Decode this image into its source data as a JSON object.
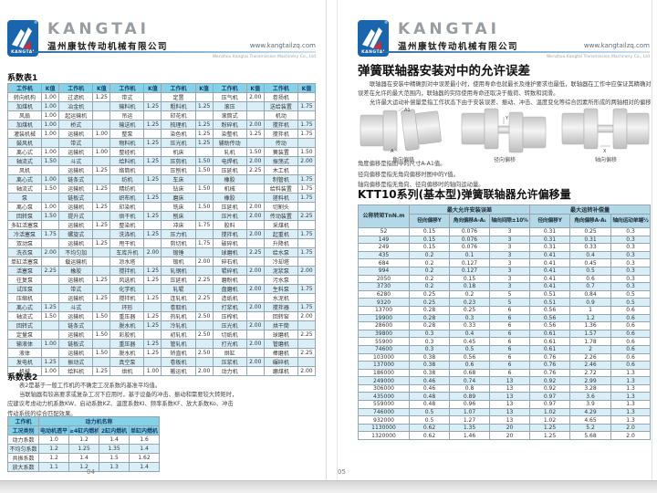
{
  "header": {
    "brand": "KANGTAI",
    "logo_text": "KANGTAI",
    "registered_mark": "®",
    "company_cn": "温州康钛传动机械有限公司",
    "website": "www.kangtailzq.com",
    "company_en": "Wenzhou Kangtai Transmission Machinery Co., Ltd"
  },
  "colors": {
    "logo_blue": "#1965ae",
    "logo_red": "#d03030",
    "table_header_cyan": "#85d2e8",
    "row_alt_blue": "#d9eef7",
    "ktt_header_blue": "#b3d8e8",
    "divider_blue": "#2e6da8"
  },
  "left_page": {
    "page_number": "04",
    "table1": {
      "title": "系数表1",
      "header": {
        "machine": "工作机",
        "k": "K值"
      },
      "rows": [
        [
          "转向机构",
          "1.00",
          "过滤机",
          "1.25",
          "带式",
          "",
          "定置",
          "",
          "压气机",
          "2.00",
          "卷扬机",
          ""
        ],
        [
          "加煤机",
          "1.00",
          "冶金机",
          "",
          "输料机",
          "1.25",
          "粗料机",
          "1.25",
          "滚压",
          "",
          "送给装置",
          "1.75"
        ],
        [
          "风扇",
          "1.00",
          "起运输机",
          "",
          "吊运",
          "",
          "印花机",
          "",
          "滚筒式",
          "",
          "机动",
          ""
        ],
        [
          "加煤机",
          "1.00",
          "桥式",
          "",
          "输送机",
          "1.25",
          "梳理机",
          "1.25",
          "粉碎机",
          "2.00",
          "搅拌机",
          "1.75"
        ],
        [
          "灌装机械",
          "1.00",
          "运输机",
          "1.00",
          "整泵",
          "",
          "染色机",
          "1.25",
          "染整机",
          "1.25",
          "搅拌机",
          "1.75"
        ],
        [
          "鼓风机",
          "",
          "带式",
          "",
          "物料机",
          "1.25",
          "压光机",
          "1.25",
          "辅助传动",
          "",
          "传动",
          ""
        ],
        [
          "离心式",
          "1.00",
          "运输机",
          "1.00",
          "整经机",
          "",
          "机床",
          "",
          "轧机",
          "1.50",
          "簧装置",
          "1.50"
        ],
        [
          "轴流式",
          "1.50",
          "斗式",
          "",
          "给料机",
          "1.25",
          "压剪机",
          "1.50",
          "电焊机",
          "2.00",
          "振荡式",
          "2.00"
        ],
        [
          "风机",
          "",
          "运输机",
          "1.25",
          "络筒机",
          "",
          "压刨机",
          "1.50",
          "压延机",
          "2.25",
          "木工机",
          ""
        ],
        [
          "离心式",
          "1.00",
          "链条式",
          "",
          "纺机",
          "1.25",
          "车床",
          "",
          "橡胶",
          "",
          "制管机",
          "1.75"
        ],
        [
          "轴流式",
          "1.50",
          "运输机",
          "1.25",
          "精纺机",
          "",
          "钻床",
          "1.50",
          "机械",
          "",
          "给料装置",
          "1.75"
        ],
        [
          "泵",
          "",
          "链板式",
          "",
          "织布机",
          "1.25",
          "磨床",
          "",
          "橡胶",
          "",
          "搓料机",
          "1.75"
        ],
        [
          "离心泵",
          "1.00",
          "运输机",
          "1.25",
          "印染机",
          "",
          "铣床",
          "1.50",
          "压延机",
          "2.00",
          "切割头",
          ""
        ],
        [
          "回转泵",
          "1.50",
          "提升式",
          "",
          "烘干机",
          "1.25",
          "刨床",
          "",
          "压片机",
          "2.00",
          "传动装置",
          "2.25"
        ],
        [
          "多缸活塞泵",
          "",
          "运输机",
          "1.25",
          "整染机",
          "",
          "冲床",
          "1.75",
          "胶料",
          "",
          "采煤机",
          ""
        ],
        [
          "冷活塞泵",
          "1.75",
          "螺旋式",
          "",
          "洗涤机",
          "1.25",
          "压力机",
          "",
          "搅拌机",
          "2.00",
          "起重机",
          "1.75"
        ],
        [
          "双动泵",
          "",
          "运输机",
          "1.25",
          "甩干机",
          "",
          "剪切机",
          "1.75",
          "破碎机",
          "",
          "升降机",
          ""
        ],
        [
          "洗衣泵",
          "2.00",
          "不均匀加",
          "",
          "车库升机",
          "2.00",
          "锻锤",
          "",
          "球磨机",
          "2.25",
          "给水泵",
          "1.75"
        ],
        [
          "单缸活塞泵",
          "",
          "载运输机",
          "",
          "凉水塔",
          "",
          "锻机",
          "2.00",
          "碎石机",
          "",
          "冷却塔",
          ""
        ],
        [
          "活塞泵",
          "2.25",
          "橡胶",
          "",
          "搅拌机",
          "1.25",
          "轧钢机",
          "",
          "辊碎机",
          "2.00",
          "泥浆泵",
          "2.00"
        ],
        [
          "往复泵",
          "",
          "运输机",
          "1.25",
          "风选机",
          "1.25",
          "压延机",
          "2.25",
          "磨粉机",
          "",
          "污水泵",
          ""
        ],
        [
          "试压泵",
          "",
          "带式",
          "",
          "化学机",
          "",
          "轧辊",
          "",
          "盘磨机",
          "2.00",
          "生料泵",
          "1.75"
        ],
        [
          "压缩机",
          "",
          "运输机",
          "1.25",
          "搅拌机",
          "1.25",
          "连轧机",
          "2.25",
          "造纸机",
          "",
          "水泥机",
          ""
        ],
        [
          "离心式",
          "1.25",
          "斗式",
          "",
          "环形",
          "",
          "卷取机",
          "",
          "打浆机",
          "2.00",
          "搅拌器",
          "1.75"
        ],
        [
          "轴流式",
          "1.50",
          "运输机",
          "1.50",
          "重压器",
          "1.25",
          "热轧机",
          "2.50",
          "压榨机",
          "",
          "回转窑",
          "2.00"
        ],
        [
          "回转式",
          "",
          "链条式",
          "",
          "脱水机",
          "1.25",
          "冷轧机",
          "",
          "压光机",
          "2.00",
          "烘干筒",
          ""
        ],
        [
          "定量泵",
          "",
          "运输机",
          "1.50",
          "彩胶机",
          "",
          "初轧机",
          "2.50",
          "切纸机",
          "",
          "球磨机",
          "2.25"
        ],
        [
          "输液体",
          "1.00",
          "链板式",
          "",
          "重压器",
          "1.25",
          "管轧机",
          "",
          "打光机",
          "2.00",
          "管磨机",
          ""
        ],
        [
          "液体",
          "",
          "运输机",
          "1.50",
          "脱水机",
          "1.25",
          "矫直机",
          "2.50",
          "烘缸",
          "",
          "棒磨机",
          "2.25"
        ],
        [
          "发电机",
          "1.25",
          "振动式",
          "",
          "真空泵",
          "",
          "卷板机",
          "",
          "压浆机",
          "2.00",
          "碾碎机",
          ""
        ],
        [
          "机械",
          "1.00",
          "给料机",
          "1.25",
          "烘机",
          "1.00",
          "搬运机",
          "2.00",
          "动力机",
          "",
          "磨煤机",
          "2.00"
        ]
      ]
    },
    "section2": {
      "title": "系数表2",
      "paragraph": [
        "表2是基于一般工作机的不确定工况系数的基准平均值。",
        "当联轴器有较高要求或复杂工况下应用时，基于设备的冲击、振动和需要较大转矩时，",
        "应建议考虑动力机系数KW、启动系数KZ、温度系数KI、频率系数KF、放大系数Ko、冲击",
        "传动系统的综合匹配效果。"
      ],
      "table2": {
        "corner": "工作机",
        "group": "动力机名称",
        "row_header": "工况类别",
        "cols": [
          "电动机透平",
          "≥4缸内燃机",
          "2缸内燃机",
          "单缸内燃机"
        ],
        "rows": [
          [
            "动力系数",
            "1.0",
            "1.2",
            "1.4",
            "1.6"
          ],
          [
            "不均匀系数",
            "1.2",
            "1.25",
            "1.35",
            "1.4"
          ],
          [
            "共振系数",
            "1.2",
            "1.4",
            "1.5",
            "1.62"
          ],
          [
            "放大系数",
            "1.1",
            "1.2",
            "1.3",
            "1.4"
          ]
        ]
      }
    }
  },
  "right_page": {
    "page_number": "05",
    "title": "弹簧联轴器安装对中的允许误差",
    "paragraph": [
      "联轴器在安装中精确到对中误差最小时，使用寿命也就最长及维护要求也最低，联轴器在工作中应保证其精确对中",
      "误差在允许的最大范围内，联轴器的实际使用寿命还取决于载荷、转数和润滑。",
      "允许最大运动补偿量是指工作状态下由于安装误差、振动、冲击、温度变化等综合因素所形成的两轴相对的偏移量。"
    ],
    "diagrams": [
      {
        "caption": "角向偏移",
        "labels": [
          "A1",
          "A"
        ]
      },
      {
        "caption": "径向偏移",
        "labels": [
          "Y"
        ]
      },
      {
        "caption": "轴向偏移",
        "labels": [
          "X"
        ]
      }
    ],
    "notes": [
      "角度偏移是指图中的尺寸A-A1值。",
      "径向偏移是指无角向偏移时图中的Y值。",
      "轴向偏移是指无角向、径向偏移时的轴向运动量。"
    ],
    "table_title": "KTT10系列(基本型)弹簧联轴器允许偏移量",
    "ktt_table": {
      "col_torque": "公称转矩TnN.m",
      "group_install": "最大允许安装误差",
      "group_run": "最大运转补偿量",
      "sub_cols": [
        "径向偏移Y",
        "角向偏移A-A₁",
        "轴向间隙±10%",
        "径向偏移Y",
        "角向偏移A-A₁",
        "轴向运动单端½"
      ],
      "rows": [
        [
          "52",
          "0.15",
          "0.076",
          "3",
          "0.31",
          "0.25",
          "0.3"
        ],
        [
          "149",
          "0.15",
          "0.076",
          "3",
          "0.31",
          "0.31",
          "0.3"
        ],
        [
          "249",
          "0.15",
          "0.076",
          "3",
          "0.31",
          "0.33",
          "0.3"
        ],
        [
          "435",
          "0.2",
          "0.1",
          "3",
          "0.41",
          "0.4",
          "0.3"
        ],
        [
          "684",
          "0.2",
          "0.127",
          "3",
          "0.41",
          "0.45",
          "0.3"
        ],
        [
          "994",
          "0.2",
          "0.127",
          "3",
          "0.41",
          "0.5",
          "0.3"
        ],
        [
          "2050",
          "0.2",
          "0.15",
          "3",
          "0.41",
          "0.6",
          "0.3"
        ],
        [
          "3730",
          "0.2",
          "0.18",
          "3",
          "0.41",
          "0.7",
          "0.3"
        ],
        [
          "6280",
          "0.25",
          "0.2",
          "5",
          "0.51",
          "0.84",
          "0.5"
        ],
        [
          "9320",
          "0.25",
          "0.23",
          "5",
          "0.51",
          "0.9",
          "0.5"
        ],
        [
          "13700",
          "0.28",
          "0.25",
          "6",
          "0.56",
          "1",
          "0.6"
        ],
        [
          "19900",
          "0.28",
          "0.3",
          "6",
          "0.56",
          "1.2",
          "0.6"
        ],
        [
          "28600",
          "0.28",
          "0.33",
          "6",
          "0.56",
          "1.36",
          "0.6"
        ],
        [
          "39800",
          "0.3",
          "0.4",
          "6",
          "0.61",
          "1.57",
          "0.6"
        ],
        [
          "55900",
          "0.3",
          "0.45",
          "6",
          "0.61",
          "1.78",
          "0.6"
        ],
        [
          "74600",
          "0.3",
          "0.5",
          "6",
          "0.61",
          "2",
          "0.6"
        ],
        [
          "103000",
          "0.38",
          "0.56",
          "6",
          "0.76",
          "2.26",
          "0.6"
        ],
        [
          "137000",
          "0.38",
          "0.6",
          "6",
          "0.76",
          "2.46",
          "0.6"
        ],
        [
          "186000",
          "0.38",
          "0.68",
          "6",
          "0.76",
          "2.72",
          "1.3"
        ],
        [
          "249000",
          "0.46",
          "0.74",
          "13",
          "0.92",
          "2.99",
          "1.3"
        ],
        [
          "306000",
          "0.46",
          "0.8",
          "13",
          "0.92",
          "3.28",
          "1.3"
        ],
        [
          "435000",
          "0.48",
          "0.89",
          "13",
          "0.97",
          "3.6",
          "1.3"
        ],
        [
          "559000",
          "0.48",
          "0.96",
          "13",
          "0.97",
          "3.9",
          "1.3"
        ],
        [
          "746000",
          "0.5",
          "1.07",
          "13",
          "1.02",
          "4.29",
          "1.3"
        ],
        [
          "932000",
          "0.5",
          "1.27",
          "13",
          "1.02",
          "4.65",
          "1.3"
        ],
        [
          "1130000",
          "0.62",
          "1.35",
          "20",
          "1.25",
          "5.2",
          "2.0"
        ],
        [
          "1320000",
          "0.62",
          "1.46",
          "20",
          "1.25",
          "5.68",
          "2.0"
        ]
      ]
    }
  }
}
